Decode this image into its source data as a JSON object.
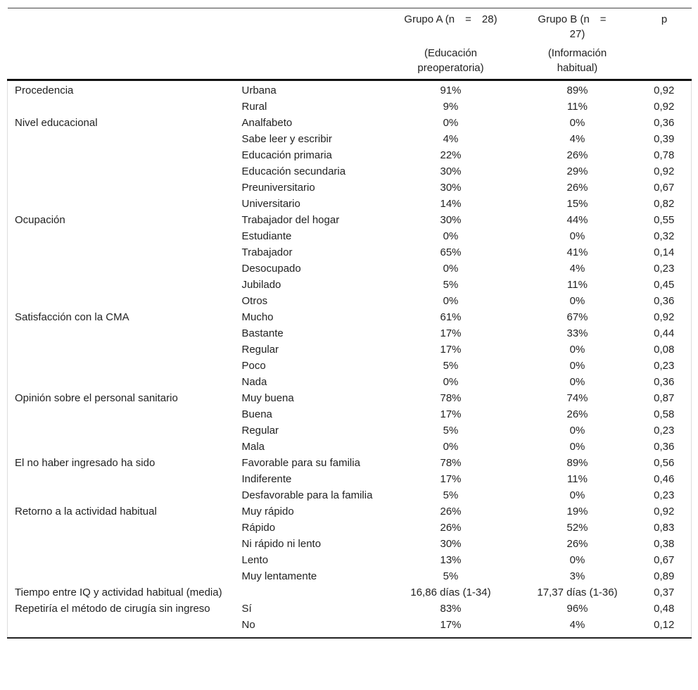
{
  "header": {
    "group_a": "Grupo A (n = 28)",
    "group_b": "Grupo B (n = 27)",
    "p": "p",
    "group_a_sub": "(Educación preoperatoria)",
    "group_b_sub": "(Información habitual)"
  },
  "rows": [
    {
      "variable": "Procedencia",
      "category": "Urbana",
      "a": "91%",
      "b": "89%",
      "p": "0,92"
    },
    {
      "variable": "",
      "category": "Rural",
      "a": "9%",
      "b": "11%",
      "p": "0,92"
    },
    {
      "variable": "Nivel educacional",
      "category": "Analfabeto",
      "a": "0%",
      "b": "0%",
      "p": "0,36"
    },
    {
      "variable": "",
      "category": "Sabe leer y escribir",
      "a": "4%",
      "b": "4%",
      "p": "0,39"
    },
    {
      "variable": "",
      "category": "Educación primaria",
      "a": "22%",
      "b": "26%",
      "p": "0,78"
    },
    {
      "variable": "",
      "category": "Educación secundaria",
      "a": "30%",
      "b": "29%",
      "p": "0,92"
    },
    {
      "variable": "",
      "category": "Preuniversitario",
      "a": "30%",
      "b": "26%",
      "p": "0,67"
    },
    {
      "variable": "",
      "category": "Universitario",
      "a": "14%",
      "b": "15%",
      "p": "0,82"
    },
    {
      "variable": "Ocupación",
      "category": "Trabajador del hogar",
      "a": "30%",
      "b": "44%",
      "p": "0,55"
    },
    {
      "variable": "",
      "category": "Estudiante",
      "a": "0%",
      "b": "0%",
      "p": "0,32"
    },
    {
      "variable": "",
      "category": "Trabajador",
      "a": "65%",
      "b": "41%",
      "p": "0,14"
    },
    {
      "variable": "",
      "category": "Desocupado",
      "a": "0%",
      "b": "4%",
      "p": "0,23"
    },
    {
      "variable": "",
      "category": "Jubilado",
      "a": "5%",
      "b": "11%",
      "p": "0,45"
    },
    {
      "variable": "",
      "category": "Otros",
      "a": "0%",
      "b": "0%",
      "p": "0,36"
    },
    {
      "variable": "Satisfacción con la CMA",
      "category": "Mucho",
      "a": "61%",
      "b": "67%",
      "p": "0,92"
    },
    {
      "variable": "",
      "category": "Bastante",
      "a": "17%",
      "b": "33%",
      "p": "0,44"
    },
    {
      "variable": "",
      "category": "Regular",
      "a": "17%",
      "b": "0%",
      "p": "0,08"
    },
    {
      "variable": "",
      "category": "Poco",
      "a": "5%",
      "b": "0%",
      "p": "0,23"
    },
    {
      "variable": "",
      "category": "Nada",
      "a": "0%",
      "b": "0%",
      "p": "0,36"
    },
    {
      "variable": "Opinión sobre el personal sanitario",
      "category": "Muy buena",
      "a": "78%",
      "b": "74%",
      "p": "0,87"
    },
    {
      "variable": "",
      "category": "Buena",
      "a": "17%",
      "b": "26%",
      "p": "0,58"
    },
    {
      "variable": "",
      "category": "Regular",
      "a": "5%",
      "b": "0%",
      "p": "0,23"
    },
    {
      "variable": "",
      "category": "Mala",
      "a": "0%",
      "b": "0%",
      "p": "0,36"
    },
    {
      "variable": "El no haber ingresado ha sido",
      "category": "Favorable para su familia",
      "a": "78%",
      "b": "89%",
      "p": "0,56"
    },
    {
      "variable": "",
      "category": "Indiferente",
      "a": "17%",
      "b": "11%",
      "p": "0,46"
    },
    {
      "variable": "",
      "category": "Desfavorable para la familia",
      "a": "5%",
      "b": "0%",
      "p": "0,23"
    },
    {
      "variable": "Retorno a la actividad habitual",
      "category": "Muy rápido",
      "a": "26%",
      "b": "19%",
      "p": "0,92"
    },
    {
      "variable": "",
      "category": "Rápido",
      "a": "26%",
      "b": "52%",
      "p": "0,83"
    },
    {
      "variable": "",
      "category": "Ni rápido ni lento",
      "a": "30%",
      "b": "26%",
      "p": "0,38"
    },
    {
      "variable": "",
      "category": "Lento",
      "a": "13%",
      "b": "0%",
      "p": "0,67"
    },
    {
      "variable": "",
      "category": "Muy lentamente",
      "a": "5%",
      "b": "3%",
      "p": "0,89"
    },
    {
      "variable": "Tiempo entre IQ y actividad habitual (media)",
      "category": "",
      "a": "16,86 días (1-34)",
      "b": "17,37 días (1-36)",
      "p": "0,37"
    },
    {
      "variable": "Repetiría el método de cirugía sin ingreso",
      "category": "Sí",
      "a": "83%",
      "b": "96%",
      "p": "0,48"
    },
    {
      "variable": "",
      "category": "No",
      "a": "17%",
      "b": "4%",
      "p": "0,12"
    }
  ]
}
